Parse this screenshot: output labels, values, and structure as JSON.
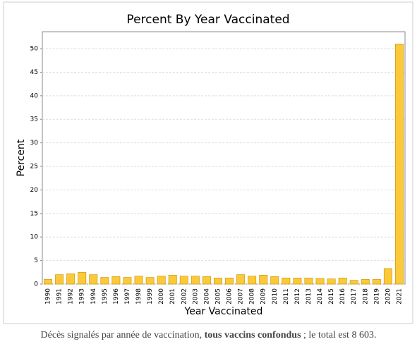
{
  "chart_data": {
    "type": "bar",
    "title": "Percent By Year Vaccinated",
    "x_label": "Year Vaccinated",
    "y_label": "Percent",
    "categories": [
      "1990",
      "1991",
      "1992",
      "1993",
      "1994",
      "1995",
      "1996",
      "1997",
      "1998",
      "1999",
      "2000",
      "2001",
      "2002",
      "2003",
      "2004",
      "2005",
      "2006",
      "2007",
      "2008",
      "2009",
      "2010",
      "2011",
      "2012",
      "2013",
      "2014",
      "2015",
      "2016",
      "2017",
      "2018",
      "2019",
      "2020",
      "2021"
    ],
    "values": [
      1.0,
      2.0,
      2.2,
      2.5,
      2.0,
      1.4,
      1.6,
      1.4,
      1.7,
      1.4,
      1.7,
      1.9,
      1.7,
      1.7,
      1.6,
      1.3,
      1.3,
      2.0,
      1.7,
      1.9,
      1.6,
      1.3,
      1.3,
      1.3,
      1.2,
      1.1,
      1.3,
      0.8,
      1.0,
      1.0,
      3.3,
      51.0
    ],
    "color": "#fcc93a",
    "ylim": [
      0,
      53.6
    ],
    "yticks": [
      0,
      5,
      10,
      15,
      20,
      25,
      30,
      35,
      40,
      45,
      50
    ],
    "grid": true
  },
  "caption": {
    "before": "Décès signalés par année de vaccination, ",
    "bold": "tous vaccins confondus",
    "after": " ; le total est 8 603."
  }
}
